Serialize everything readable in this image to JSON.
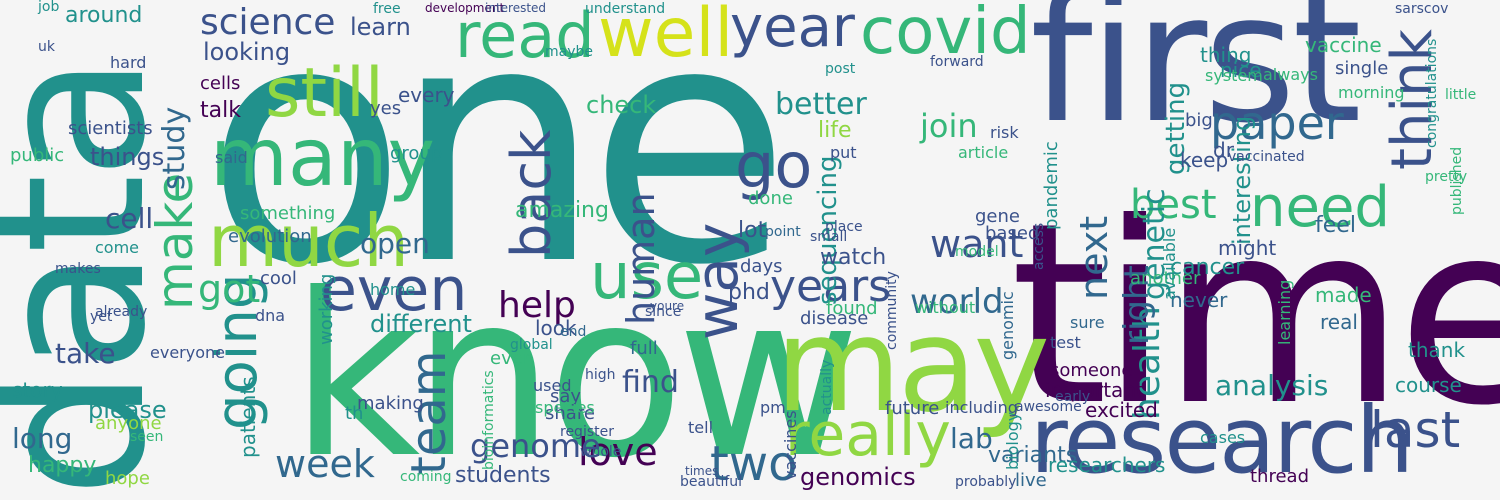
{
  "palette": {
    "purple": "#440154",
    "indigo": "#3b528b",
    "blue": "#31688e",
    "teal": "#21918c",
    "green": "#35b779",
    "lime": "#90d743",
    "yellow": "#d5e21a"
  },
  "words": [
    {
      "text": "one",
      "color": "teal"
    },
    {
      "text": "data",
      "color": "teal"
    },
    {
      "text": "time",
      "color": "purple"
    },
    {
      "text": "know",
      "color": "green"
    },
    {
      "text": "first",
      "color": "indigo"
    },
    {
      "text": "may",
      "color": "lime"
    },
    {
      "text": "research",
      "color": "indigo"
    },
    {
      "text": "many",
      "color": "green"
    },
    {
      "text": "much",
      "color": "lime"
    },
    {
      "text": "still",
      "color": "lime"
    },
    {
      "text": "read",
      "color": "green"
    },
    {
      "text": "well",
      "color": "yellow"
    },
    {
      "text": "covid",
      "color": "green"
    },
    {
      "text": "think",
      "color": "indigo"
    },
    {
      "text": "year",
      "color": "indigo"
    },
    {
      "text": "paper",
      "color": "blue"
    },
    {
      "text": "need",
      "color": "green"
    },
    {
      "text": "go",
      "color": "indigo"
    },
    {
      "text": "use",
      "color": "green"
    },
    {
      "text": "way",
      "color": "indigo"
    },
    {
      "text": "back",
      "color": "indigo"
    },
    {
      "text": "even",
      "color": "indigo"
    },
    {
      "text": "going",
      "color": "teal"
    },
    {
      "text": "make",
      "color": "green"
    },
    {
      "text": "really",
      "color": "lime"
    },
    {
      "text": "last",
      "color": "indigo"
    },
    {
      "text": "team",
      "color": "blue"
    },
    {
      "text": "years",
      "color": "indigo"
    },
    {
      "text": "two",
      "color": "blue"
    },
    {
      "text": "week",
      "color": "blue"
    },
    {
      "text": "science",
      "color": "indigo"
    },
    {
      "text": "best",
      "color": "green"
    },
    {
      "text": "world",
      "color": "blue"
    },
    {
      "text": "want",
      "color": "indigo"
    },
    {
      "text": "human",
      "color": "indigo"
    },
    {
      "text": "health",
      "color": "teal"
    },
    {
      "text": "next",
      "color": "blue"
    },
    {
      "text": "right",
      "color": "blue"
    },
    {
      "text": "love",
      "color": "purple"
    },
    {
      "text": "genome",
      "color": "indigo"
    },
    {
      "text": "help",
      "color": "purple"
    },
    {
      "text": "got",
      "color": "green"
    },
    {
      "text": "better",
      "color": "teal"
    },
    {
      "text": "study",
      "color": "blue"
    },
    {
      "text": "take",
      "color": "indigo"
    },
    {
      "text": "genomics",
      "color": "purple"
    },
    {
      "text": "analysis",
      "color": "teal"
    },
    {
      "text": "lab",
      "color": "blue"
    },
    {
      "text": "find",
      "color": "indigo"
    },
    {
      "text": "learn",
      "color": "indigo"
    },
    {
      "text": "genetic",
      "color": "teal"
    },
    {
      "text": "sequencing",
      "color": "teal"
    },
    {
      "text": "different",
      "color": "teal"
    },
    {
      "text": "cell",
      "color": "indigo"
    },
    {
      "text": "things",
      "color": "indigo"
    },
    {
      "text": "open",
      "color": "blue"
    },
    {
      "text": "long",
      "color": "blue"
    },
    {
      "text": "join",
      "color": "green"
    },
    {
      "text": "check",
      "color": "green"
    },
    {
      "text": "getting",
      "color": "teal"
    },
    {
      "text": "interesting",
      "color": "teal"
    },
    {
      "text": "please",
      "color": "teal"
    },
    {
      "text": "looking",
      "color": "indigo"
    },
    {
      "text": "watch",
      "color": "indigo"
    },
    {
      "text": "cancer",
      "color": "teal"
    },
    {
      "text": "vaccine",
      "color": "green"
    },
    {
      "text": "amazing",
      "color": "green"
    },
    {
      "text": "around",
      "color": "teal"
    },
    {
      "text": "life",
      "color": "lime"
    },
    {
      "text": "lot",
      "color": "indigo"
    },
    {
      "text": "phd",
      "color": "indigo"
    },
    {
      "text": "talk",
      "color": "purple"
    },
    {
      "text": "every",
      "color": "indigo"
    },
    {
      "text": "thing",
      "color": "teal"
    },
    {
      "text": "nice",
      "color": "teal"
    },
    {
      "text": "made",
      "color": "green"
    },
    {
      "text": "course",
      "color": "teal"
    },
    {
      "text": "happy",
      "color": "green"
    },
    {
      "text": "variants",
      "color": "blue"
    },
    {
      "text": "students",
      "color": "indigo"
    },
    {
      "text": "important",
      "color": "purple"
    },
    {
      "text": "real",
      "color": "blue"
    },
    {
      "text": "thank",
      "color": "teal"
    },
    {
      "text": "feel",
      "color": "blue"
    },
    {
      "text": "might",
      "color": "indigo"
    },
    {
      "text": "never",
      "color": "blue"
    },
    {
      "text": "another",
      "color": "green"
    },
    {
      "text": "keep",
      "color": "indigo"
    },
    {
      "text": "dr",
      "color": "indigo"
    },
    {
      "text": "scientists",
      "color": "indigo"
    },
    {
      "text": "story",
      "color": "teal"
    },
    {
      "text": "patients",
      "color": "teal"
    },
    {
      "text": "done",
      "color": "green"
    },
    {
      "text": "days",
      "color": "indigo"
    },
    {
      "text": "found",
      "color": "green"
    },
    {
      "text": "disease",
      "color": "indigo"
    },
    {
      "text": "future",
      "color": "indigo"
    },
    {
      "text": "excited",
      "color": "purple"
    },
    {
      "text": "researchers",
      "color": "teal"
    },
    {
      "text": "someone",
      "color": "purple"
    },
    {
      "text": "live",
      "color": "blue"
    },
    {
      "text": "thread",
      "color": "purple"
    },
    {
      "text": "look",
      "color": "indigo"
    },
    {
      "text": "full",
      "color": "blue"
    },
    {
      "text": "ever",
      "color": "green"
    },
    {
      "text": "share",
      "color": "indigo"
    },
    {
      "text": "say",
      "color": "indigo"
    },
    {
      "text": "used",
      "color": "indigo"
    },
    {
      "text": "tell",
      "color": "indigo"
    },
    {
      "text": "hope",
      "color": "lime"
    },
    {
      "text": "anyone",
      "color": "lime"
    },
    {
      "text": "seen",
      "color": "green"
    },
    {
      "text": "evolution",
      "color": "blue"
    },
    {
      "text": "something",
      "color": "green"
    },
    {
      "text": "gene",
      "color": "indigo"
    },
    {
      "text": "based",
      "color": "indigo"
    },
    {
      "text": "home",
      "color": "teal"
    },
    {
      "text": "cool",
      "color": "indigo"
    },
    {
      "text": "working",
      "color": "teal"
    },
    {
      "text": "making",
      "color": "indigo"
    },
    {
      "text": "dna",
      "color": "indigo"
    },
    {
      "text": "group",
      "color": "teal"
    },
    {
      "text": "yes",
      "color": "indigo"
    },
    {
      "text": "said",
      "color": "blue"
    },
    {
      "text": "cells",
      "color": "purple"
    },
    {
      "text": "public",
      "color": "green"
    },
    {
      "text": "system",
      "color": "green"
    },
    {
      "text": "always",
      "color": "green"
    },
    {
      "text": "single",
      "color": "indigo"
    },
    {
      "text": "pandemic",
      "color": "teal"
    },
    {
      "text": "access",
      "color": "indigo"
    },
    {
      "text": "available",
      "color": "teal"
    },
    {
      "text": "big",
      "color": "indigo"
    },
    {
      "text": "article",
      "color": "green"
    },
    {
      "text": "risk",
      "color": "indigo"
    },
    {
      "text": "vaccinated",
      "color": "indigo"
    },
    {
      "text": "morning",
      "color": "green"
    },
    {
      "text": "congratulations",
      "color": "teal"
    },
    {
      "text": "little",
      "color": "green"
    },
    {
      "text": "pretty",
      "color": "green"
    },
    {
      "text": "published",
      "color": "green"
    },
    {
      "text": "learning",
      "color": "green"
    },
    {
      "text": "genomic",
      "color": "blue"
    },
    {
      "text": "biology",
      "color": "teal"
    },
    {
      "text": "vaccines",
      "color": "indigo"
    },
    {
      "text": "actually",
      "color": "teal"
    },
    {
      "text": "probably",
      "color": "indigo"
    },
    {
      "text": "high",
      "color": "indigo"
    },
    {
      "text": "global",
      "color": "teal"
    },
    {
      "text": "end",
      "color": "blue"
    },
    {
      "text": "come",
      "color": "teal"
    },
    {
      "text": "makes",
      "color": "indigo"
    },
    {
      "text": "hard",
      "color": "indigo"
    },
    {
      "text": "job",
      "color": "teal"
    },
    {
      "text": "uk",
      "color": "indigo"
    },
    {
      "text": "free",
      "color": "teal"
    },
    {
      "text": "post",
      "color": "teal"
    },
    {
      "text": "understand",
      "color": "teal"
    },
    {
      "text": "development",
      "color": "purple"
    },
    {
      "text": "interested",
      "color": "indigo"
    },
    {
      "text": "sarscov",
      "color": "indigo"
    },
    {
      "text": "forward",
      "color": "indigo"
    },
    {
      "text": "cases",
      "color": "teal"
    },
    {
      "text": "put",
      "color": "indigo"
    },
    {
      "text": "since",
      "color": "indigo"
    },
    {
      "text": "youre",
      "color": "indigo"
    },
    {
      "text": "already",
      "color": "indigo"
    },
    {
      "text": "everyone",
      "color": "indigo"
    },
    {
      "text": "yet",
      "color": "indigo"
    },
    {
      "text": "maybe",
      "color": "teal"
    },
    {
      "text": "test",
      "color": "indigo"
    },
    {
      "text": "sure",
      "color": "blue"
    },
    {
      "text": "early",
      "color": "indigo"
    },
    {
      "text": "model",
      "color": "green"
    },
    {
      "text": "point",
      "color": "blue"
    },
    {
      "text": "place",
      "color": "indigo"
    },
    {
      "text": "small",
      "color": "indigo"
    },
    {
      "text": "community",
      "color": "indigo"
    },
    {
      "text": "including",
      "color": "indigo"
    },
    {
      "text": "awesome",
      "color": "indigo"
    },
    {
      "text": "without",
      "color": "green"
    },
    {
      "text": "th",
      "color": "teal"
    },
    {
      "text": "register",
      "color": "indigo"
    },
    {
      "text": "bioinformatics",
      "color": "green"
    },
    {
      "text": "species",
      "color": "green"
    },
    {
      "text": "coming",
      "color": "green"
    },
    {
      "text": "beautiful",
      "color": "indigo"
    },
    {
      "text": "times",
      "color": "indigo"
    },
    {
      "text": "pm",
      "color": "indigo"
    },
    {
      "text": "whole",
      "color": "indigo"
    },
    {
      "text": "year-old",
      "color": "indigo"
    }
  ]
}
